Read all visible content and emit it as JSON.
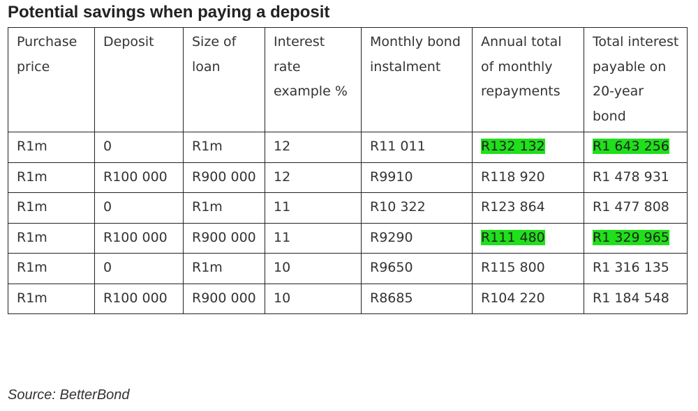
{
  "title": "Potential savings when paying a deposit",
  "headers": [
    "Purchase price",
    "Deposit",
    "Size of loan",
    "Interest rate example %",
    "Monthly bond instalment",
    "Annual total of monthly repayments",
    "Total interest payable on 20-year bond"
  ],
  "rows": [
    [
      "R1m",
      "0",
      "R1m",
      "12",
      "R11 011",
      "R132 132",
      "R1 643 256"
    ],
    [
      "R1m",
      "R100 000",
      "R900 000",
      "12",
      "R9910",
      "R118 920",
      "R1 478 931"
    ],
    [
      "R1m",
      "0",
      "R1m",
      "11",
      "R10 322",
      "R123 864",
      "R1 477 808"
    ],
    [
      "R1m",
      "R100 000",
      "R900 000",
      "11",
      "R9290",
      "R111 480",
      "R1 329 965"
    ],
    [
      "R1m",
      "0",
      "R1m",
      "10",
      "R9650",
      "R115 800",
      "R1 316 135"
    ],
    [
      "R1m",
      "R100 000",
      "R900 000",
      "10",
      "R8685",
      "R104 220",
      "R1 184 548"
    ]
  ],
  "highlight_color": "#1fe01a",
  "source": "Source: BetterBond"
}
